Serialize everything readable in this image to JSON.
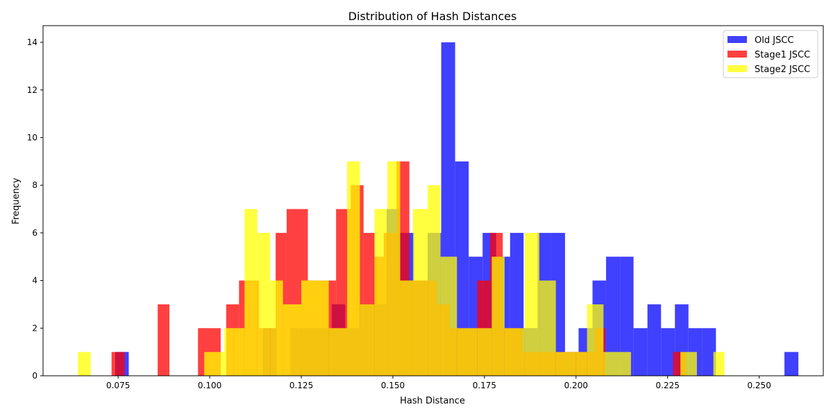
{
  "chart_data": {
    "type": "bar",
    "title": "Distribution of Hash Distances",
    "xlabel": "Hash Distance",
    "ylabel": "Frequency",
    "xlim": [
      0.0545,
      0.2675
    ],
    "ylim": [
      0,
      14.7
    ],
    "xticks": [
      {
        "value": 0.075,
        "label": "0.075"
      },
      {
        "value": 0.1,
        "label": "0.100"
      },
      {
        "value": 0.125,
        "label": "0.125"
      },
      {
        "value": 0.15,
        "label": "0.150"
      },
      {
        "value": 0.175,
        "label": "0.175"
      },
      {
        "value": 0.2,
        "label": "0.200"
      },
      {
        "value": 0.225,
        "label": "0.225"
      },
      {
        "value": 0.25,
        "label": "0.250"
      }
    ],
    "yticks": [
      {
        "value": 0,
        "label": "0"
      },
      {
        "value": 2,
        "label": "2"
      },
      {
        "value": 4,
        "label": "4"
      },
      {
        "value": 6,
        "label": "6"
      },
      {
        "value": 8,
        "label": "8"
      },
      {
        "value": 10,
        "label": "10"
      },
      {
        "value": 12,
        "label": "12"
      },
      {
        "value": 14,
        "label": "14"
      }
    ],
    "grid": false,
    "legend_position": "top-right",
    "series": [
      {
        "name": "Old JSCC",
        "color": "#0000ff",
        "alpha": 0.75,
        "bins": [
          [
            0.0742,
            0.0779,
            1
          ],
          [
            0.1145,
            0.1183,
            2
          ],
          [
            0.122,
            0.1258,
            2
          ],
          [
            0.1258,
            0.1295,
            2
          ],
          [
            0.1295,
            0.1333,
            2
          ],
          [
            0.1333,
            0.137,
            3
          ],
          [
            0.137,
            0.1408,
            2
          ],
          [
            0.1408,
            0.1445,
            3
          ],
          [
            0.1445,
            0.1483,
            3
          ],
          [
            0.1483,
            0.152,
            7
          ],
          [
            0.152,
            0.1558,
            6
          ],
          [
            0.1558,
            0.1595,
            4
          ],
          [
            0.1595,
            0.1632,
            6
          ],
          [
            0.1632,
            0.167,
            14
          ],
          [
            0.167,
            0.1707,
            9
          ],
          [
            0.1707,
            0.1745,
            5
          ],
          [
            0.1745,
            0.1782,
            6
          ],
          [
            0.1782,
            0.182,
            5
          ],
          [
            0.182,
            0.1857,
            6
          ],
          [
            0.1857,
            0.1895,
            2
          ],
          [
            0.1895,
            0.1932,
            6
          ],
          [
            0.1932,
            0.197,
            6
          ],
          [
            0.197,
            0.2007,
            1
          ],
          [
            0.2007,
            0.2045,
            2
          ],
          [
            0.2045,
            0.2082,
            4
          ],
          [
            0.2082,
            0.212,
            5
          ],
          [
            0.212,
            0.2157,
            5
          ],
          [
            0.2157,
            0.2195,
            2
          ],
          [
            0.2195,
            0.2232,
            3
          ],
          [
            0.2232,
            0.227,
            2
          ],
          [
            0.227,
            0.2307,
            3
          ],
          [
            0.2307,
            0.2345,
            2
          ],
          [
            0.2345,
            0.2382,
            2
          ],
          [
            0.2569,
            0.2607,
            1
          ]
        ]
      },
      {
        "name": "Stage1 JSCC",
        "color": "#ff0000",
        "alpha": 0.75,
        "bins": [
          [
            0.0732,
            0.0768,
            1
          ],
          [
            0.0858,
            0.089,
            3
          ],
          [
            0.0968,
            0.103,
            2
          ],
          [
            0.1045,
            0.108,
            3
          ],
          [
            0.108,
            0.1135,
            4
          ],
          [
            0.1135,
            0.118,
            2
          ],
          [
            0.118,
            0.121,
            6
          ],
          [
            0.121,
            0.1268,
            7
          ],
          [
            0.1268,
            0.1345,
            4
          ],
          [
            0.1345,
            0.1385,
            7
          ],
          [
            0.1385,
            0.142,
            8
          ],
          [
            0.142,
            0.145,
            6
          ],
          [
            0.145,
            0.1475,
            5
          ],
          [
            0.1475,
            0.151,
            6
          ],
          [
            0.151,
            0.1545,
            9
          ],
          [
            0.1545,
            0.162,
            4
          ],
          [
            0.162,
            0.1655,
            3
          ],
          [
            0.1655,
            0.173,
            2
          ],
          [
            0.173,
            0.1765,
            4
          ],
          [
            0.1765,
            0.18,
            6
          ],
          [
            0.18,
            0.1855,
            2
          ],
          [
            0.1855,
            0.1895,
            1
          ],
          [
            0.1895,
            0.198,
            1
          ],
          [
            0.198,
            0.205,
            1
          ],
          [
            0.205,
            0.208,
            2
          ],
          [
            0.2265,
            0.23,
            1
          ]
        ]
      },
      {
        "name": "Stage2 JSCC",
        "color": "#ffff00",
        "alpha": 0.75,
        "bins": [
          [
            0.064,
            0.0675,
            1
          ],
          [
            0.0985,
            0.104,
            1
          ],
          [
            0.104,
            0.1065,
            2
          ],
          [
            0.1065,
            0.1095,
            2
          ],
          [
            0.1095,
            0.113,
            7
          ],
          [
            0.113,
            0.1165,
            6
          ],
          [
            0.1165,
            0.12,
            4
          ],
          [
            0.12,
            0.125,
            3
          ],
          [
            0.125,
            0.1325,
            4
          ],
          [
            0.1325,
            0.1375,
            2
          ],
          [
            0.1375,
            0.141,
            9
          ],
          [
            0.141,
            0.145,
            3
          ],
          [
            0.145,
            0.1485,
            7
          ],
          [
            0.1485,
            0.152,
            9
          ],
          [
            0.152,
            0.1555,
            4
          ],
          [
            0.1555,
            0.1595,
            7
          ],
          [
            0.1595,
            0.163,
            8
          ],
          [
            0.163,
            0.1675,
            5
          ],
          [
            0.1675,
            0.173,
            2
          ],
          [
            0.173,
            0.177,
            2
          ],
          [
            0.177,
            0.1805,
            5
          ],
          [
            0.1805,
            0.186,
            2
          ],
          [
            0.186,
            0.19,
            6
          ],
          [
            0.19,
            0.1945,
            4
          ],
          [
            0.1945,
            0.2,
            1
          ],
          [
            0.2,
            0.203,
            1
          ],
          [
            0.203,
            0.2075,
            3
          ],
          [
            0.2075,
            0.215,
            1
          ],
          [
            0.2285,
            0.233,
            1
          ],
          [
            0.2375,
            0.2405,
            1
          ]
        ]
      }
    ]
  }
}
